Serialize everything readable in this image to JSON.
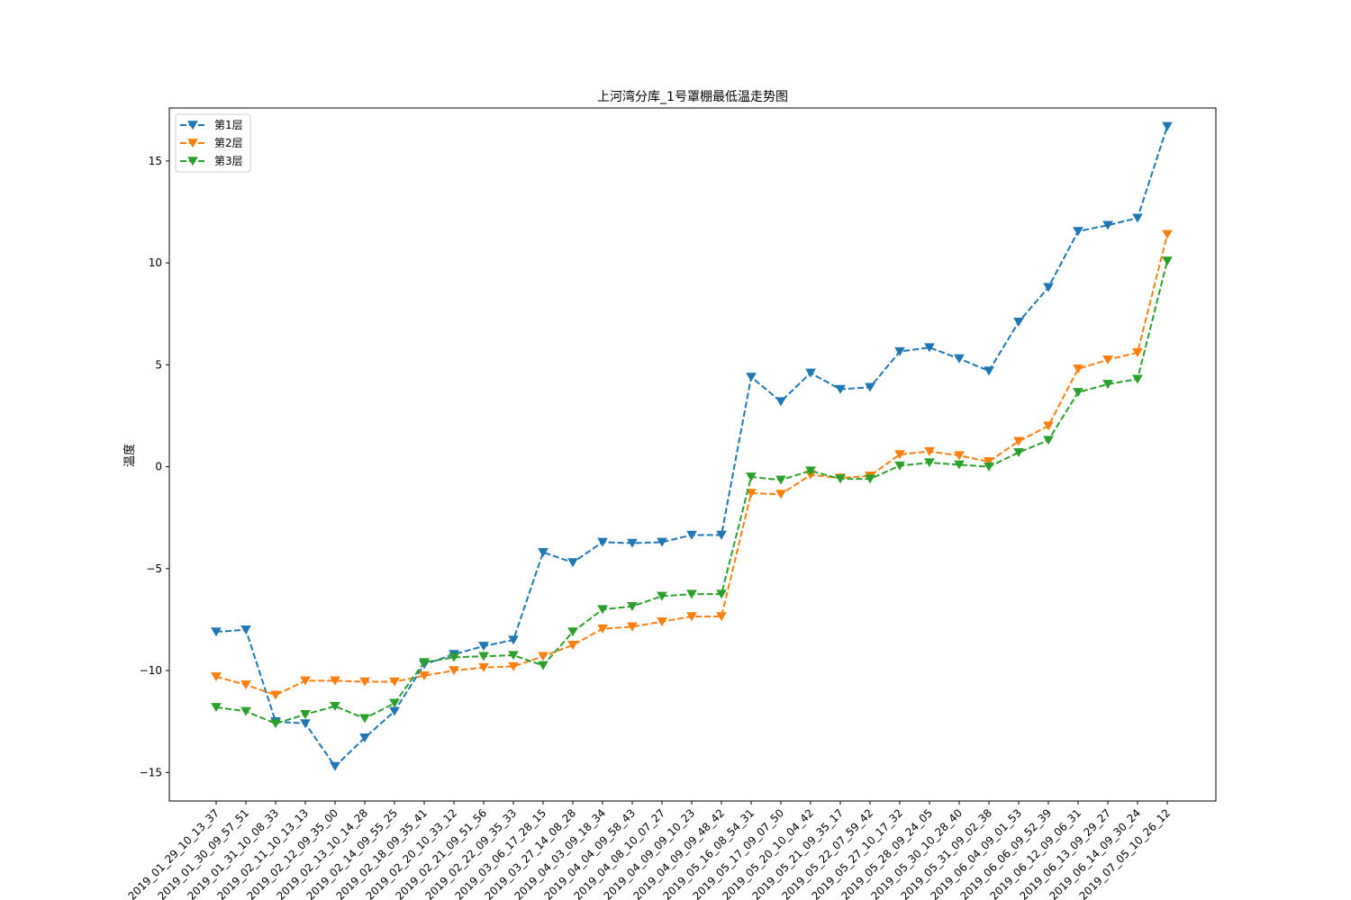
{
  "chart_data": {
    "type": "line",
    "title": "上河湾分库_1号罩棚最低温走势图",
    "xlabel": "",
    "ylabel": "温度",
    "ylim": [
      -16.4,
      17.6
    ],
    "yticks": [
      -15,
      -10,
      -5,
      0,
      5,
      10,
      15
    ],
    "grid": false,
    "legend_position": "upper left",
    "marker": "triangle-down",
    "linestyle": "dashed",
    "categories": [
      "2019_01_29_10_13_37",
      "2019_01_30_09_57_51",
      "2019_01_31_10_08_33",
      "2019_02_11_10_13_13",
      "2019_02_12_09_35_00",
      "2019_02_13_10_14_28",
      "2019_02_14_09_55_25",
      "2019_02_18_09_35_41",
      "2019_02_20_10_33_12",
      "2019_02_21_09_51_56",
      "2019_02_22_09_35_33",
      "2019_03_06_17_28_15",
      "2019_03_27_14_08_28",
      "2019_04_03_09_18_34",
      "2019_04_04_09_58_43",
      "2019_04_08_10_07_27",
      "2019_04_09_09_10_23",
      "2019_04_09_09_48_42",
      "2019_05_16_08_54_31",
      "2019_05_17_09_07_50",
      "2019_05_20_10_04_42",
      "2019_05_21_09_35_17",
      "2019_05_22_07_59_42",
      "2019_05_27_10_17_32",
      "2019_05_28_09_24_05",
      "2019_05_30_10_28_40",
      "2019_05_31_09_02_38",
      "2019_06_04_09_01_53",
      "2019_06_06_09_52_39",
      "2019_06_12_09_06_31",
      "2019_06_13_09_29_27",
      "2019_06_14_09_30_24",
      "2019_07_05_10_26_12"
    ],
    "series": [
      {
        "name": "第1层",
        "color": "#1f77b4",
        "values": [
          -8.1,
          -8.0,
          -12.5,
          -12.6,
          -14.7,
          -13.3,
          -12.0,
          -9.7,
          -9.2,
          -8.8,
          -8.5,
          -4.2,
          -4.7,
          -3.7,
          -3.75,
          -3.7,
          -3.35,
          -3.35,
          4.4,
          3.2,
          4.6,
          3.8,
          3.9,
          5.65,
          5.85,
          5.3,
          4.7,
          7.1,
          8.8,
          11.55,
          11.85,
          12.2,
          16.7
        ]
      },
      {
        "name": "第2层",
        "color": "#ff7f0e",
        "values": [
          -10.3,
          -10.7,
          -11.2,
          -10.5,
          -10.5,
          -10.55,
          -10.55,
          -10.25,
          -10.0,
          -9.85,
          -9.8,
          -9.3,
          -8.75,
          -7.95,
          -7.85,
          -7.6,
          -7.35,
          -7.35,
          -1.3,
          -1.35,
          -0.4,
          -0.55,
          -0.45,
          0.6,
          0.75,
          0.55,
          0.25,
          1.25,
          2.0,
          4.8,
          5.25,
          5.6,
          11.4
        ]
      },
      {
        "name": "第3层",
        "color": "#2ca02c",
        "values": [
          -11.8,
          -12.0,
          -12.6,
          -12.15,
          -11.75,
          -12.35,
          -11.6,
          -9.6,
          -9.35,
          -9.3,
          -9.25,
          -9.75,
          -8.1,
          -7.0,
          -6.85,
          -6.35,
          -6.25,
          -6.25,
          -0.5,
          -0.65,
          -0.2,
          -0.6,
          -0.6,
          0.05,
          0.2,
          0.1,
          0.0,
          0.7,
          1.3,
          3.65,
          4.05,
          4.3,
          10.1
        ]
      }
    ]
  }
}
